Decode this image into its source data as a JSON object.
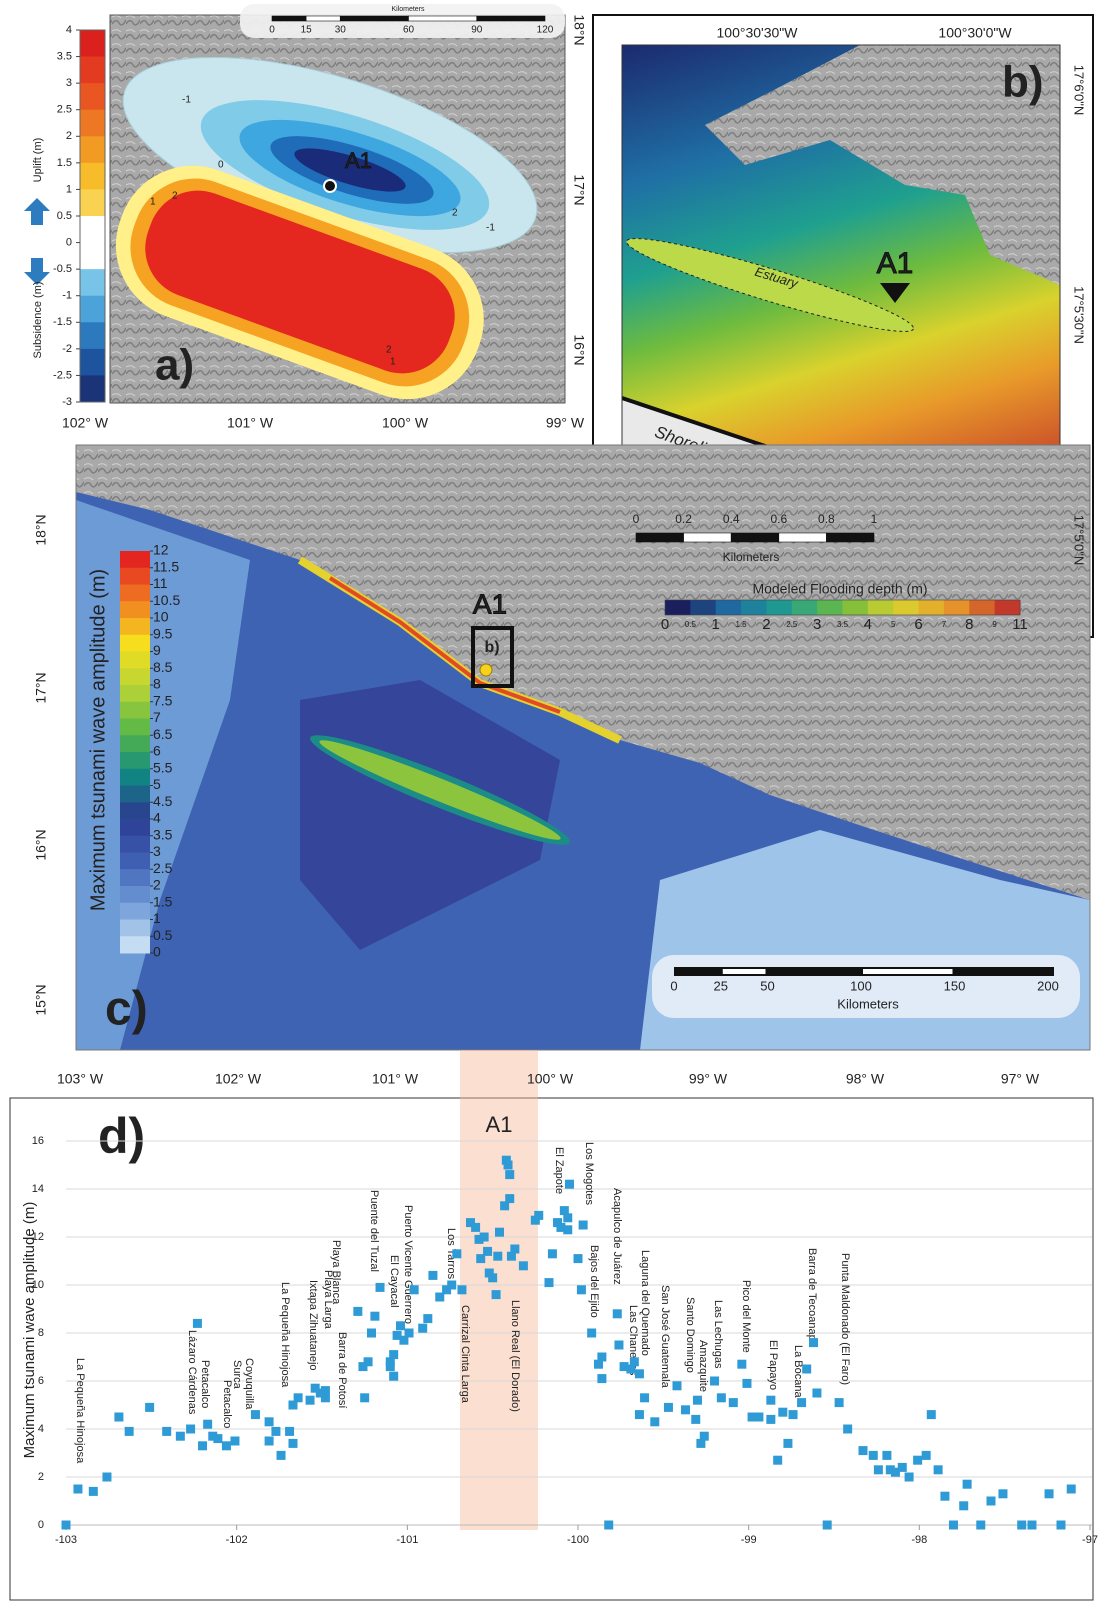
{
  "panel_a": {
    "label": "a)",
    "marker": "A1",
    "colorbar": {
      "ticks": [
        4,
        3.5,
        3,
        2.5,
        2,
        1.5,
        1,
        0.5,
        0,
        -0.5,
        -1,
        -1.5,
        -2,
        -2.5,
        -3
      ],
      "uplift_label": "Uplift (m)",
      "subsidence_label": "Subsidence (m)"
    },
    "lon_labels": [
      "102° W",
      "101° W",
      "100° W",
      "99° W"
    ],
    "lat_labels": [
      "18°N",
      "17°N",
      "16°N"
    ],
    "scale": {
      "title": "Kilometers",
      "ticks": [
        0,
        15,
        30,
        60,
        90,
        120
      ]
    },
    "contours": [
      "-1",
      "0",
      "2",
      "-1",
      "1",
      "2",
      "2",
      "1"
    ]
  },
  "panel_b": {
    "label": "b)",
    "marker": "A1",
    "estuary": "Estuary",
    "shoreline": "Shoreline",
    "lon_labels": [
      "100°30'30\"W",
      "100°30'0\"W"
    ],
    "lat_labels": [
      "17°6'0\"N",
      "17°5'30\"N",
      "17°5'0\"N"
    ],
    "scale": {
      "title": "Kilometers",
      "ticks": [
        0,
        0.2,
        0.4,
        0.6,
        0.8,
        1
      ]
    },
    "legend": {
      "title": "Modeled Flooding depth (m)",
      "ticks": [
        0,
        0.5,
        1,
        1.5,
        2,
        2.5,
        3,
        3.5,
        4,
        5,
        6,
        7,
        8,
        9,
        11
      ]
    }
  },
  "panel_c": {
    "label": "c)",
    "marker": "A1",
    "inset": "b)",
    "colorbar": {
      "title": "Maximum tsunami wave amplitude (m)",
      "ticks": [
        12,
        11.5,
        11,
        10.5,
        10,
        9.5,
        9,
        8.5,
        8,
        7.5,
        7,
        6.5,
        6,
        5.5,
        5,
        4.5,
        4,
        3.5,
        3,
        2.5,
        2,
        1.5,
        1,
        0.5,
        0
      ]
    },
    "lon_labels": [
      "103° W",
      "102° W",
      "101° W",
      "100° W",
      "99° W",
      "98° W",
      "97° W"
    ],
    "lat_labels": [
      "18°N",
      "17°N",
      "16°N",
      "15°N"
    ],
    "scale": {
      "title": "Kilometers",
      "ticks": [
        0,
        25,
        50,
        100,
        150,
        200
      ]
    }
  },
  "chart_data": {
    "type": "scatter",
    "label": "d)",
    "highlight": "A1",
    "ylabel": "Maximum tsunami wave amplitude (m)",
    "color": "#2f9bd6",
    "grid": true,
    "xlim": [
      -103,
      -97
    ],
    "ylim": [
      0,
      16
    ],
    "xticks": [
      -103,
      -102,
      -101,
      -100,
      -99,
      -98,
      -97
    ],
    "yticks": [
      0,
      2,
      4,
      6,
      8,
      10,
      12,
      14,
      16
    ],
    "x": [
      -103,
      -102.93,
      -102.84,
      -102.76,
      -102.69,
      -102.63,
      -102.51,
      -102.41,
      -102.33,
      -102.27,
      -102.23,
      -102.2,
      -102.17,
      -102.14,
      -102.11,
      -102.06,
      -102.01,
      -101.89,
      -101.81,
      -101.81,
      -101.77,
      -101.74,
      -101.69,
      -101.67,
      -101.67,
      -101.64,
      -101.57,
      -101.54,
      -101.51,
      -101.48,
      -101.48,
      -101.29,
      -101.26,
      -101.25,
      -101.23,
      -101.21,
      -101.19,
      -101.16,
      -101.1,
      -101.1,
      -101.08,
      -101.08,
      -101.06,
      -101.04,
      -101.02,
      -100.99,
      -100.96,
      -100.91,
      -100.88,
      -100.85,
      -100.81,
      -100.77,
      -100.74,
      -100.71,
      -100.68,
      -100.63,
      -100.6,
      -100.58,
      -100.57,
      -100.55,
      -100.53,
      -100.52,
      -100.5,
      -100.48,
      -100.47,
      -100.46,
      -100.43,
      -100.42,
      -100.41,
      -100.4,
      -100.4,
      -100.39,
      -100.37,
      -100.32,
      -100.25,
      -100.23,
      -100.17,
      -100.15,
      -100.12,
      -100.1,
      -100.08,
      -100.06,
      -100.06,
      -100.05,
      -100.0,
      -99.98,
      -99.97,
      -99.92,
      -99.88,
      -99.86,
      -99.86,
      -99.82,
      -99.77,
      -99.76,
      -99.73,
      -99.69,
      -99.67,
      -99.64,
      -99.64,
      -99.61,
      -99.55,
      -99.47,
      -99.42,
      -99.37,
      -99.31,
      -99.3,
      -99.28,
      -99.26,
      -99.2,
      -99.16,
      -99.09,
      -99.04,
      -99.01,
      -98.98,
      -98.94,
      -98.87,
      -98.87,
      -98.83,
      -98.8,
      -98.77,
      -98.74,
      -98.69,
      -98.66,
      -98.62,
      -98.6,
      -98.54,
      -98.47,
      -98.42,
      -98.33,
      -98.27,
      -98.24,
      -98.19,
      -98.17,
      -98.14,
      -98.1,
      -98.06,
      -98.01,
      -97.96,
      -97.93,
      -97.89,
      -97.85,
      -97.8,
      -97.74,
      -97.72,
      -97.64,
      -97.58,
      -97.51,
      -97.4,
      -97.34,
      -97.24,
      -97.17,
      -97.11
    ],
    "values": [
      0,
      1.5,
      1.4,
      2.0,
      4.5,
      3.9,
      4.9,
      3.9,
      3.7,
      4.0,
      8.4,
      3.3,
      4.2,
      3.7,
      3.6,
      3.3,
      3.5,
      4.6,
      3.5,
      4.3,
      3.9,
      2.9,
      3.9,
      3.4,
      5.0,
      5.3,
      5.2,
      5.7,
      5.5,
      5.3,
      5.6,
      8.9,
      6.6,
      5.3,
      6.8,
      8.0,
      8.7,
      9.9,
      6.8,
      6.6,
      6.2,
      7.1,
      7.9,
      8.3,
      7.7,
      8.0,
      9.8,
      8.2,
      8.6,
      10.4,
      9.5,
      9.8,
      10.0,
      11.3,
      9.8,
      12.6,
      12.4,
      11.9,
      11.1,
      12.0,
      11.4,
      10.5,
      10.3,
      9.6,
      11.2,
      12.2,
      13.3,
      15.2,
      15.0,
      14.6,
      13.6,
      11.2,
      11.5,
      10.8,
      12.7,
      12.9,
      10.1,
      11.3,
      12.6,
      12.4,
      13.1,
      12.8,
      12.3,
      14.2,
      11.1,
      9.8,
      12.5,
      8.0,
      6.7,
      6.1,
      7.0,
      0,
      8.8,
      7.5,
      6.6,
      6.5,
      6.8,
      6.3,
      4.6,
      5.3,
      4.3,
      4.9,
      5.8,
      4.8,
      4.4,
      5.2,
      3.4,
      3.7,
      6.0,
      5.3,
      5.1,
      6.7,
      5.9,
      4.5,
      4.5,
      5.2,
      4.4,
      2.7,
      4.7,
      3.4,
      4.6,
      5.1,
      6.5,
      7.6,
      5.5,
      0,
      5.1,
      4.0,
      3.1,
      2.9,
      2.3,
      2.9,
      2.3,
      2.2,
      2.4,
      2.0,
      2.7,
      2.9,
      4.6,
      2.3,
      1.2,
      0,
      0.8,
      1.7,
      0,
      1.0,
      1.3,
      0,
      0,
      1.3,
      0,
      1.5
    ],
    "annotations": [
      "La Pequeña Hinojosa",
      "Lázaro Cárdenas",
      "Petacalco",
      "Petacalco",
      "Surca",
      "Coyuquilla",
      "La Pequeña Hinojosa",
      "Ixtapa Zihuatanejo",
      "Playa Larga",
      "Playa Blanca",
      "Barra de Potosí",
      "Puente del Tuzal",
      "El Cayacal",
      "Puerto Vicente Guerrero",
      "Los Tarros",
      "Carrizal Cinta Larga",
      "Llano Real (El Dorado)",
      "El Zapote",
      "Los Mogotes",
      "Bajos del Ejido",
      "Acapulco de Juárez",
      "Las Chanecas",
      "Laguna del Quemado",
      "San José Guatemala",
      "Santo Domingo",
      "Amazquite",
      "Las Lechugas",
      "Pico del Monte",
      "El Papayo",
      "La Bocana",
      "Barra de Tecoanapa",
      "Punta Maldonado (El Faro)"
    ]
  }
}
